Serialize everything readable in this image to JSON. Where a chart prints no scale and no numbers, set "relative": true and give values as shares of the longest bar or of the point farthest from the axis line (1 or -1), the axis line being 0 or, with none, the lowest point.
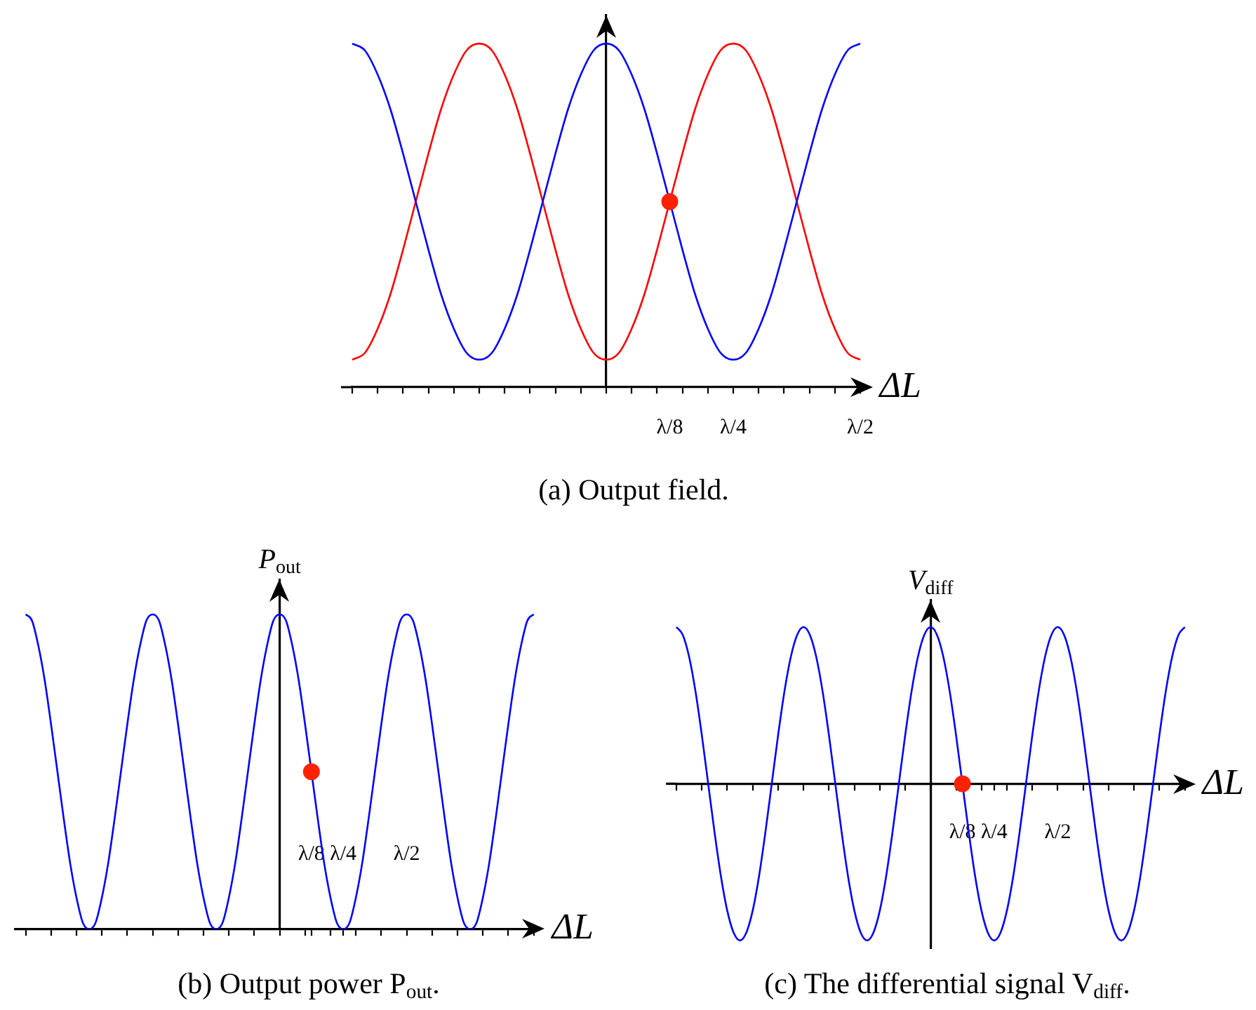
{
  "chart_data": [
    {
      "type": "line",
      "title": "(a) Output field.",
      "xlabel": "ΔL",
      "relative": true,
      "categories": [
        null,
        null,
        null,
        null,
        null,
        null,
        null,
        null,
        null,
        null,
        null,
        null,
        null,
        null,
        null,
        null,
        null,
        null,
        null,
        null,
        null,
        null,
        null,
        null,
        null,
        "λ/8",
        null,
        null,
        null,
        null,
        "λ/4",
        null,
        null,
        null,
        null,
        null,
        null,
        null,
        null,
        null,
        "λ/2"
      ],
      "series": [
        {
          "color": "#0000ff",
          "values": [
            1,
            0.98,
            0.91,
            0.81,
            0.68,
            0.54,
            0.4,
            0.27,
            0.17,
            0.1,
            0.08,
            0.1,
            0.17,
            0.27,
            0.4,
            0.54,
            0.68,
            0.81,
            0.91,
            0.98,
            1,
            0.98,
            0.91,
            0.81,
            0.68,
            0.54,
            0.4,
            0.27,
            0.17,
            0.1,
            0.08,
            0.1,
            0.17,
            0.27,
            0.4,
            0.54,
            0.68,
            0.81,
            0.91,
            0.98,
            1
          ]
        },
        {
          "color": "#ff0000",
          "values": [
            0.08,
            0.1,
            0.17,
            0.27,
            0.4,
            0.54,
            0.68,
            0.81,
            0.91,
            0.98,
            1,
            0.98,
            0.91,
            0.81,
            0.68,
            0.54,
            0.4,
            0.27,
            0.17,
            0.1,
            0.08,
            0.1,
            0.17,
            0.27,
            0.4,
            0.54,
            0.68,
            0.81,
            0.91,
            0.98,
            1,
            0.98,
            0.91,
            0.81,
            0.68,
            0.54,
            0.4,
            0.27,
            0.17,
            0.1,
            0.08
          ]
        },
        {
          "type": "scatter",
          "color": "#ff2200",
          "x": [
            "λ/8"
          ],
          "values": [
            0.54
          ]
        }
      ]
    },
    {
      "type": "line",
      "title": "(b) Output power P$_{out}$.",
      "xlabel": "ΔL",
      "ylabel": "P$_{out}$",
      "relative": true,
      "categories": [
        null,
        null,
        null,
        null,
        null,
        null,
        null,
        null,
        null,
        null,
        null,
        null,
        null,
        null,
        null,
        null,
        null,
        null,
        null,
        null,
        null,
        null,
        null,
        null,
        null,
        null,
        null,
        null,
        null,
        null,
        null,
        null,
        null,
        null,
        null,
        null,
        null,
        null,
        null,
        null,
        null,
        null,
        null,
        null,
        null,
        "λ/8",
        null,
        null,
        null,
        null,
        "λ/4",
        null,
        null,
        null,
        null,
        null,
        null,
        null,
        null,
        null,
        "λ/2",
        null,
        null,
        null,
        null,
        null,
        null,
        null,
        null,
        null,
        null,
        null,
        null,
        null,
        null,
        null,
        null,
        null,
        null,
        null,
        null
      ],
      "series": [
        {
          "color": "#0000ff",
          "values": [
            1,
            0.98,
            0.9,
            0.79,
            0.65,
            0.5,
            0.35,
            0.21,
            0.1,
            0.02,
            0,
            0.02,
            0.1,
            0.21,
            0.35,
            0.5,
            0.65,
            0.79,
            0.9,
            0.98,
            1,
            0.98,
            0.9,
            0.79,
            0.65,
            0.5,
            0.35,
            0.21,
            0.1,
            0.02,
            0,
            0.02,
            0.1,
            0.21,
            0.35,
            0.5,
            0.65,
            0.79,
            0.9,
            0.98,
            1,
            0.98,
            0.9,
            0.79,
            0.65,
            0.5,
            0.35,
            0.21,
            0.1,
            0.02,
            0,
            0.02,
            0.1,
            0.21,
            0.35,
            0.5,
            0.65,
            0.79,
            0.9,
            0.98,
            1,
            0.98,
            0.9,
            0.79,
            0.65,
            0.5,
            0.35,
            0.21,
            0.1,
            0.02,
            0,
            0.02,
            0.1,
            0.21,
            0.35,
            0.5,
            0.65,
            0.79,
            0.9,
            0.98,
            1
          ]
        },
        {
          "type": "scatter",
          "color": "#ff2200",
          "x": [
            "λ/8"
          ],
          "values": [
            0.5
          ]
        }
      ]
    },
    {
      "type": "line",
      "title": "(c) The differential signal V$_{diff}$.",
      "xlabel": "ΔL",
      "ylabel": "V$_{diff}$",
      "relative": true,
      "categories": [
        null,
        null,
        null,
        null,
        null,
        null,
        null,
        null,
        null,
        null,
        null,
        null,
        null,
        null,
        null,
        null,
        null,
        null,
        null,
        null,
        null,
        null,
        null,
        null,
        null,
        null,
        null,
        null,
        null,
        null,
        null,
        null,
        null,
        null,
        null,
        null,
        null,
        null,
        null,
        null,
        null,
        null,
        null,
        null,
        null,
        "λ/8",
        null,
        null,
        null,
        null,
        "λ/4",
        null,
        null,
        null,
        null,
        null,
        null,
        null,
        null,
        null,
        "λ/2",
        null,
        null,
        null,
        null,
        null,
        null,
        null,
        null,
        null,
        null,
        null,
        null,
        null,
        null,
        null,
        null,
        null,
        null,
        null,
        null
      ],
      "series": [
        {
          "color": "#0000ff",
          "values": [
            1,
            0.95,
            0.81,
            0.59,
            0.31,
            0,
            -0.31,
            -0.59,
            -0.81,
            -0.95,
            -1,
            -0.95,
            -0.81,
            -0.59,
            -0.31,
            0,
            0.31,
            0.59,
            0.81,
            0.95,
            1,
            0.95,
            0.81,
            0.59,
            0.31,
            0,
            -0.31,
            -0.59,
            -0.81,
            -0.95,
            -1,
            -0.95,
            -0.81,
            -0.59,
            -0.31,
            0,
            0.31,
            0.59,
            0.81,
            0.95,
            1,
            0.95,
            0.81,
            0.59,
            0.31,
            0,
            -0.31,
            -0.59,
            -0.81,
            -0.95,
            -1,
            -0.95,
            -0.81,
            -0.59,
            -0.31,
            0,
            0.31,
            0.59,
            0.81,
            0.95,
            1,
            0.95,
            0.81,
            0.59,
            0.31,
            0,
            -0.31,
            -0.59,
            -0.81,
            -0.95,
            -1,
            -0.95,
            -0.81,
            -0.59,
            -0.31,
            0,
            0.31,
            0.59,
            0.81,
            0.95,
            1
          ]
        },
        {
          "type": "scatter",
          "color": "#ff2200",
          "x": [
            "λ/8"
          ],
          "values": [
            0
          ]
        }
      ]
    }
  ]
}
